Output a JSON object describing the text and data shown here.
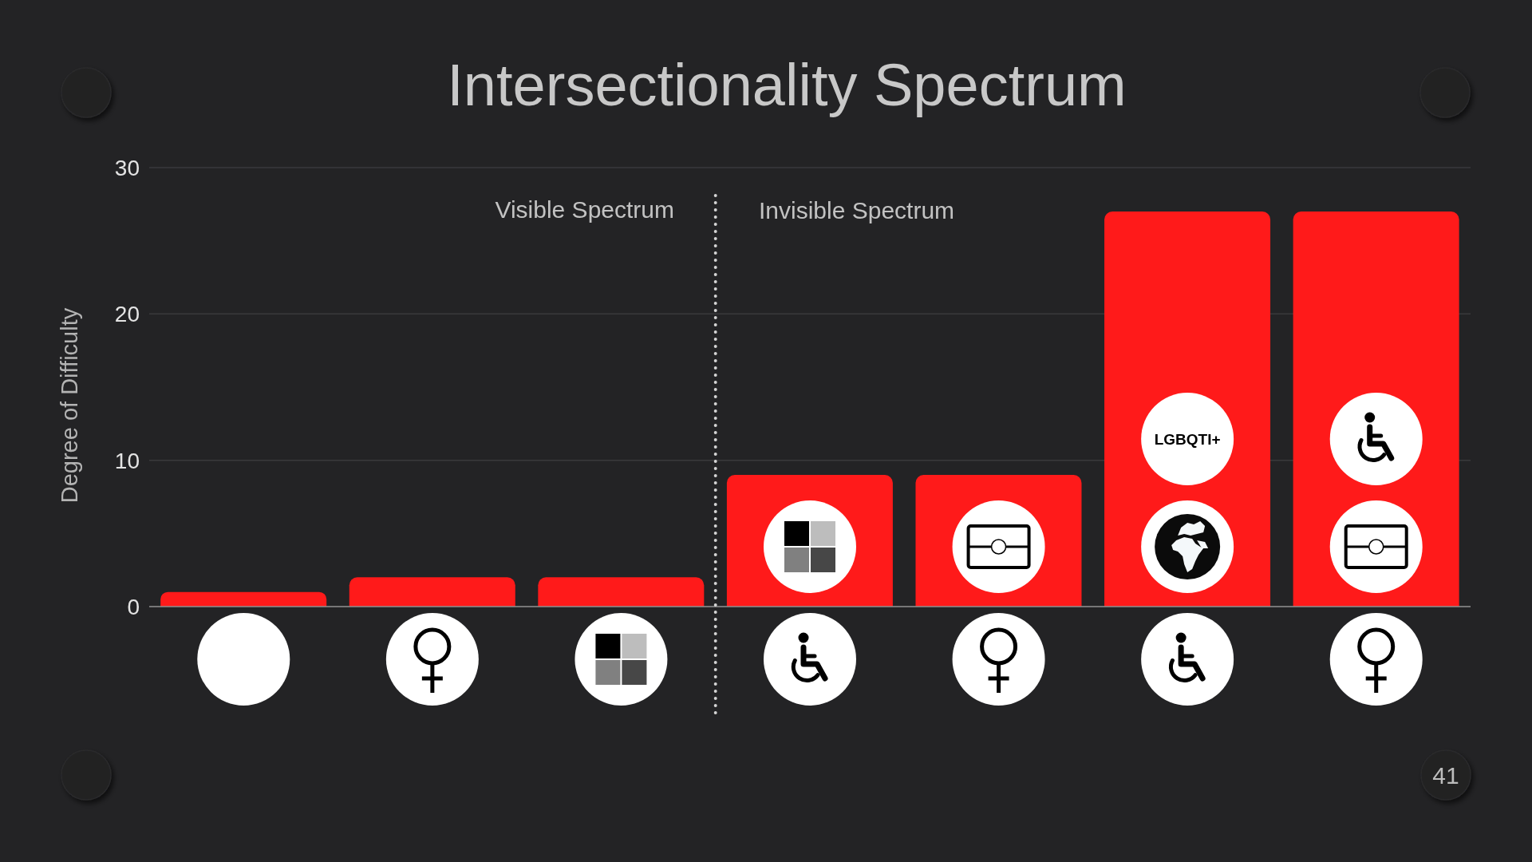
{
  "chart_data": {
    "type": "bar",
    "title": "Intersectionality Spectrum",
    "ylabel": "Degree of Difficulty",
    "categories": [
      null,
      null,
      null,
      null,
      null,
      null,
      null
    ],
    "values": [
      1,
      2,
      2,
      9,
      9,
      27,
      27
    ],
    "color": "#ff1a1a",
    "ylim": [
      0,
      30
    ],
    "yticks": [
      0,
      10,
      20,
      30
    ],
    "grid": "y",
    "annotations": [
      "Visible Spectrum",
      "Invisible Spectrum",
      "LGBQTI+",
      "41"
    ]
  }
}
